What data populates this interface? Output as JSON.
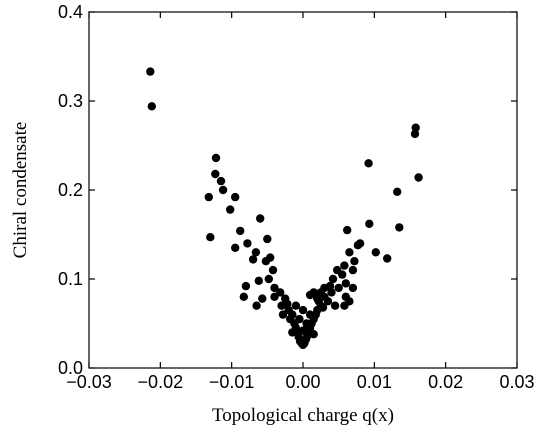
{
  "chart_data": {
    "type": "scatter",
    "title": "",
    "xlabel": "Topological charge q(x)",
    "ylabel": "Chiral condensate",
    "xlim": [
      -0.03,
      0.03
    ],
    "ylim": [
      0.0,
      0.4
    ],
    "xticks": [
      -0.03,
      -0.02,
      -0.01,
      0.0,
      0.01,
      0.02,
      0.03
    ],
    "xtick_labels": [
      "−0.03",
      "−0.02",
      "−0.01",
      "0.00",
      "0.01",
      "0.02",
      "0.03"
    ],
    "yticks": [
      0.0,
      0.1,
      0.2,
      0.3,
      0.4
    ],
    "ytick_labels": [
      "0.0",
      "0.1",
      "0.2",
      "0.3",
      "0.4"
    ],
    "grid": false,
    "marker_color": "#000000",
    "series": [
      {
        "name": "",
        "points": [
          [
            -0.0214,
            0.333
          ],
          [
            -0.0212,
            0.294
          ],
          [
            -0.0122,
            0.236
          ],
          [
            -0.0123,
            0.218
          ],
          [
            -0.0115,
            0.21
          ],
          [
            -0.0112,
            0.2
          ],
          [
            -0.0132,
            0.192
          ],
          [
            -0.0095,
            0.192
          ],
          [
            -0.0102,
            0.178
          ],
          [
            -0.0088,
            0.154
          ],
          [
            -0.013,
            0.147
          ],
          [
            -0.0095,
            0.135
          ],
          [
            -0.006,
            0.168
          ],
          [
            -0.0078,
            0.14
          ],
          [
            -0.007,
            0.122
          ],
          [
            -0.005,
            0.145
          ],
          [
            -0.0066,
            0.13
          ],
          [
            -0.0052,
            0.12
          ],
          [
            -0.0048,
            0.1
          ],
          [
            -0.0046,
            0.124
          ],
          [
            -0.0042,
            0.11
          ],
          [
            -0.004,
            0.09
          ],
          [
            -0.0062,
            0.098
          ],
          [
            -0.008,
            0.092
          ],
          [
            -0.0083,
            0.08
          ],
          [
            -0.0057,
            0.078
          ],
          [
            -0.0065,
            0.07
          ],
          [
            -0.004,
            0.08
          ],
          [
            -0.0032,
            0.085
          ],
          [
            -0.003,
            0.07
          ],
          [
            -0.0025,
            0.078
          ],
          [
            -0.002,
            0.065
          ],
          [
            -0.0018,
            0.055
          ],
          [
            -0.0015,
            0.06
          ],
          [
            -0.0012,
            0.05
          ],
          [
            -0.001,
            0.045
          ],
          [
            -0.0008,
            0.04
          ],
          [
            -0.0006,
            0.035
          ],
          [
            -0.0004,
            0.03
          ],
          [
            -0.0002,
            0.028
          ],
          [
            0.0,
            0.026
          ],
          [
            0.0002,
            0.028
          ],
          [
            0.0004,
            0.032
          ],
          [
            0.0006,
            0.036
          ],
          [
            0.0008,
            0.04
          ],
          [
            0.001,
            0.045
          ],
          [
            0.0012,
            0.05
          ],
          [
            0.0015,
            0.055
          ],
          [
            0.0018,
            0.06
          ],
          [
            0.002,
            0.065
          ],
          [
            0.0025,
            0.07
          ],
          [
            -0.0028,
            0.06
          ],
          [
            -0.0022,
            0.072
          ],
          [
            0.0022,
            0.075
          ],
          [
            0.0028,
            0.068
          ],
          [
            -0.001,
            0.07
          ],
          [
            0.0,
            0.065
          ],
          [
            0.001,
            0.06
          ],
          [
            -0.0005,
            0.055
          ],
          [
            0.0005,
            0.05
          ],
          [
            0.0,
            0.042
          ],
          [
            -0.0015,
            0.04
          ],
          [
            0.0015,
            0.038
          ],
          [
            0.003,
            0.08
          ],
          [
            0.0035,
            0.075
          ],
          [
            0.004,
            0.085
          ],
          [
            0.0045,
            0.07
          ],
          [
            0.001,
            0.082
          ],
          [
            0.0015,
            0.085
          ],
          [
            0.002,
            0.078
          ],
          [
            0.005,
            0.09
          ],
          [
            0.0055,
            0.105
          ],
          [
            0.006,
            0.095
          ],
          [
            0.0042,
            0.1
          ],
          [
            0.0048,
            0.11
          ],
          [
            0.0058,
            0.115
          ],
          [
            0.0062,
            0.155
          ],
          [
            0.0065,
            0.13
          ],
          [
            0.007,
            0.11
          ],
          [
            0.0072,
            0.12
          ],
          [
            0.006,
            0.08
          ],
          [
            0.0058,
            0.07
          ],
          [
            0.0065,
            0.075
          ],
          [
            0.007,
            0.09
          ],
          [
            0.003,
            0.09
          ],
          [
            0.0038,
            0.092
          ],
          [
            0.0025,
            0.085
          ],
          [
            0.008,
            0.14
          ],
          [
            0.0077,
            0.138
          ],
          [
            0.0092,
            0.23
          ],
          [
            0.0093,
            0.162
          ],
          [
            0.0102,
            0.13
          ],
          [
            0.0118,
            0.123
          ],
          [
            0.0132,
            0.198
          ],
          [
            0.0135,
            0.158
          ],
          [
            0.0158,
            0.27
          ],
          [
            0.0157,
            0.263
          ],
          [
            0.0162,
            0.214
          ]
        ]
      }
    ]
  }
}
